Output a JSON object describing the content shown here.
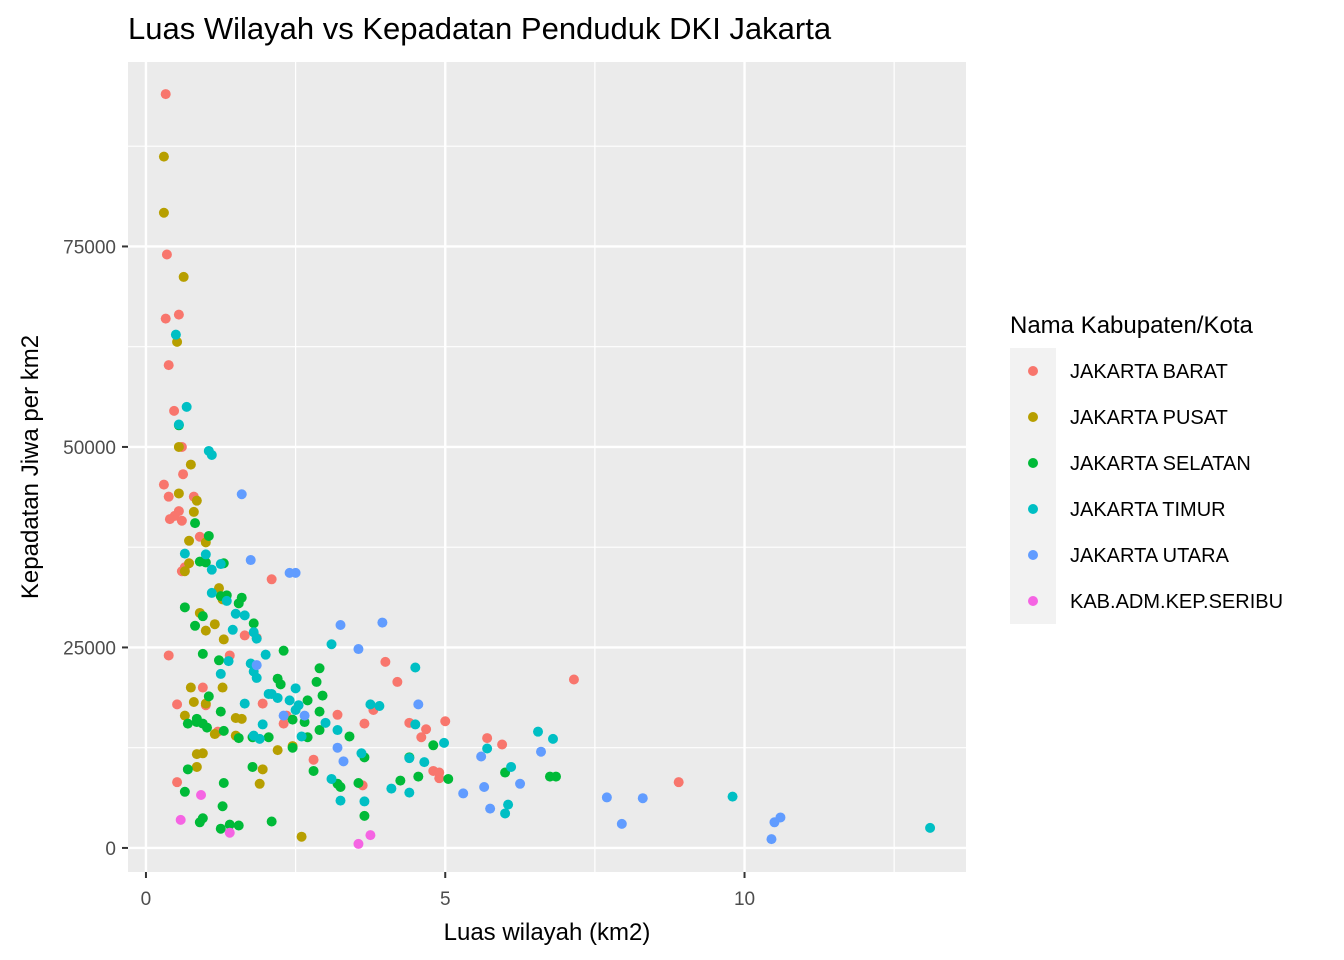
{
  "chart_data": {
    "type": "scatter",
    "title": "Luas Wilayah vs Kepadatan Penduduk DKI Jakarta",
    "xlabel": "Luas wilayah (km2)",
    "ylabel": "Kepadatan Jiwa per km2",
    "xlim": [
      -0.3,
      13.7
    ],
    "ylim": [
      -3000,
      98000
    ],
    "x_ticks": [
      0,
      5,
      10
    ],
    "y_ticks": [
      0,
      25000,
      50000,
      75000
    ],
    "grid": true,
    "legend": {
      "title": "Nama Kabupaten/Kota",
      "position": "right"
    },
    "series": [
      {
        "name": "JAKARTA BARAT",
        "color": "#F8766D",
        "points": [
          [
            0.33,
            94000
          ],
          [
            0.35,
            74000
          ],
          [
            0.33,
            66000
          ],
          [
            0.55,
            66500
          ],
          [
            0.38,
            60200
          ],
          [
            0.47,
            54500
          ],
          [
            0.6,
            50000
          ],
          [
            0.3,
            45300
          ],
          [
            0.38,
            43800
          ],
          [
            0.55,
            42000
          ],
          [
            0.48,
            41400
          ],
          [
            0.62,
            46600
          ],
          [
            0.6,
            40800
          ],
          [
            0.4,
            41000
          ],
          [
            0.8,
            43800
          ],
          [
            0.9,
            38800
          ],
          [
            0.65,
            35000
          ],
          [
            0.6,
            34500
          ],
          [
            0.38,
            24000
          ],
          [
            0.52,
            17900
          ],
          [
            0.52,
            8200
          ],
          [
            0.95,
            20000
          ],
          [
            1.0,
            17800
          ],
          [
            1.2,
            14500
          ],
          [
            1.4,
            24000
          ],
          [
            1.65,
            26500
          ],
          [
            1.85,
            26200
          ],
          [
            1.95,
            18000
          ],
          [
            2.1,
            33500
          ],
          [
            2.3,
            15500
          ],
          [
            2.35,
            16500
          ],
          [
            2.8,
            11000
          ],
          [
            3.2,
            16600
          ],
          [
            3.65,
            15500
          ],
          [
            3.8,
            17200
          ],
          [
            3.62,
            7800
          ],
          [
            4.0,
            23200
          ],
          [
            4.2,
            20700
          ],
          [
            4.4,
            15600
          ],
          [
            4.6,
            13800
          ],
          [
            4.68,
            14800
          ],
          [
            4.8,
            9600
          ],
          [
            4.9,
            8700
          ],
          [
            4.9,
            9400
          ],
          [
            5.0,
            15800
          ],
          [
            5.7,
            13700
          ],
          [
            5.95,
            12900
          ],
          [
            7.15,
            21000
          ],
          [
            8.9,
            8200
          ]
        ]
      },
      {
        "name": "JAKARTA PUSAT",
        "color": "#B79F00",
        "points": [
          [
            0.3,
            86200
          ],
          [
            0.3,
            79200
          ],
          [
            0.63,
            71200
          ],
          [
            0.52,
            63100
          ],
          [
            0.55,
            50000
          ],
          [
            0.55,
            44200
          ],
          [
            0.75,
            47800
          ],
          [
            0.85,
            43300
          ],
          [
            0.8,
            41900
          ],
          [
            0.72,
            38300
          ],
          [
            1.0,
            38100
          ],
          [
            0.72,
            35500
          ],
          [
            0.65,
            34500
          ],
          [
            1.22,
            32400
          ],
          [
            1.28,
            31000
          ],
          [
            1.0,
            27100
          ],
          [
            1.15,
            27900
          ],
          [
            1.3,
            26000
          ],
          [
            0.9,
            29300
          ],
          [
            0.75,
            20000
          ],
          [
            0.8,
            18200
          ],
          [
            0.65,
            16500
          ],
          [
            1.0,
            18000
          ],
          [
            1.28,
            20000
          ],
          [
            1.15,
            14200
          ],
          [
            0.85,
            11700
          ],
          [
            0.95,
            11800
          ],
          [
            0.85,
            10100
          ],
          [
            1.5,
            16200
          ],
          [
            1.6,
            16100
          ],
          [
            1.5,
            14000
          ],
          [
            2.2,
            12200
          ],
          [
            1.9,
            8000
          ],
          [
            1.95,
            9800
          ],
          [
            2.6,
            1400
          ],
          [
            2.45,
            12700
          ]
        ]
      },
      {
        "name": "JAKARTA SELATAN",
        "color": "#00BA38",
        "points": [
          [
            0.55,
            52700
          ],
          [
            0.82,
            40500
          ],
          [
            1.05,
            38900
          ],
          [
            0.9,
            35700
          ],
          [
            1.0,
            35600
          ],
          [
            0.65,
            30000
          ],
          [
            0.95,
            28900
          ],
          [
            0.82,
            27700
          ],
          [
            1.3,
            35500
          ],
          [
            1.35,
            31500
          ],
          [
            1.55,
            30500
          ],
          [
            1.6,
            31200
          ],
          [
            1.8,
            28000
          ],
          [
            1.25,
            31400
          ],
          [
            0.95,
            24200
          ],
          [
            1.22,
            23400
          ],
          [
            1.25,
            17000
          ],
          [
            1.05,
            18900
          ],
          [
            0.85,
            16100
          ],
          [
            0.95,
            15500
          ],
          [
            1.02,
            15000
          ],
          [
            0.85,
            15700
          ],
          [
            0.7,
            15500
          ],
          [
            0.7,
            9800
          ],
          [
            0.65,
            7000
          ],
          [
            0.9,
            3200
          ],
          [
            0.95,
            3700
          ],
          [
            1.3,
            8100
          ],
          [
            1.28,
            5200
          ],
          [
            1.25,
            2400
          ],
          [
            1.4,
            2900
          ],
          [
            1.55,
            2800
          ],
          [
            1.3,
            14600
          ],
          [
            1.55,
            13700
          ],
          [
            1.78,
            13800
          ],
          [
            2.2,
            21100
          ],
          [
            2.25,
            20400
          ],
          [
            2.3,
            24600
          ],
          [
            2.05,
            13800
          ],
          [
            2.45,
            12500
          ],
          [
            2.45,
            16000
          ],
          [
            2.65,
            15700
          ],
          [
            2.9,
            22400
          ],
          [
            2.95,
            19000
          ],
          [
            2.7,
            18400
          ],
          [
            2.9,
            17000
          ],
          [
            2.85,
            20700
          ],
          [
            2.8,
            9600
          ],
          [
            2.9,
            14700
          ],
          [
            2.7,
            13800
          ],
          [
            3.4,
            13900
          ],
          [
            3.25,
            7600
          ],
          [
            3.65,
            11300
          ],
          [
            3.55,
            8100
          ],
          [
            3.65,
            4000
          ],
          [
            3.2,
            8000
          ],
          [
            4.25,
            8400
          ],
          [
            4.55,
            8900
          ],
          [
            4.4,
            11300
          ],
          [
            4.8,
            12800
          ],
          [
            5.05,
            8600
          ],
          [
            6.0,
            9400
          ],
          [
            6.75,
            8900
          ],
          [
            6.85,
            8900
          ],
          [
            2.1,
            3300
          ],
          [
            1.78,
            10100
          ]
        ]
      },
      {
        "name": "JAKARTA TIMUR",
        "color": "#00BFC4",
        "points": [
          [
            0.5,
            64000
          ],
          [
            0.68,
            55000
          ],
          [
            0.55,
            52800
          ],
          [
            1.05,
            49500
          ],
          [
            1.1,
            49000
          ],
          [
            0.65,
            36700
          ],
          [
            1.0,
            36600
          ],
          [
            1.1,
            34700
          ],
          [
            1.25,
            35400
          ],
          [
            1.1,
            31800
          ],
          [
            1.35,
            30800
          ],
          [
            1.45,
            27200
          ],
          [
            1.5,
            29200
          ],
          [
            1.65,
            29000
          ],
          [
            1.85,
            26100
          ],
          [
            1.8,
            26900
          ],
          [
            1.75,
            23000
          ],
          [
            1.8,
            22000
          ],
          [
            2.0,
            24100
          ],
          [
            1.25,
            21700
          ],
          [
            1.38,
            23300
          ],
          [
            2.1,
            19200
          ],
          [
            2.2,
            18700
          ],
          [
            2.05,
            19200
          ],
          [
            2.4,
            18400
          ],
          [
            2.5,
            19900
          ],
          [
            2.5,
            17200
          ],
          [
            2.55,
            17800
          ],
          [
            2.6,
            13900
          ],
          [
            1.65,
            18000
          ],
          [
            1.85,
            21200
          ],
          [
            1.9,
            13600
          ],
          [
            1.95,
            15400
          ],
          [
            1.8,
            14000
          ],
          [
            3.1,
            25400
          ],
          [
            3.0,
            15600
          ],
          [
            3.2,
            14700
          ],
          [
            3.1,
            8600
          ],
          [
            3.25,
            5900
          ],
          [
            3.6,
            11800
          ],
          [
            3.65,
            5800
          ],
          [
            3.75,
            17900
          ],
          [
            3.9,
            17700
          ],
          [
            4.1,
            7400
          ],
          [
            4.4,
            11200
          ],
          [
            4.5,
            22500
          ],
          [
            4.5,
            15400
          ],
          [
            4.4,
            6900
          ],
          [
            4.65,
            10700
          ],
          [
            4.98,
            13100
          ],
          [
            5.7,
            12400
          ],
          [
            6.05,
            5400
          ],
          [
            6.1,
            10100
          ],
          [
            6.55,
            14500
          ],
          [
            6.8,
            13600
          ],
          [
            6.0,
            4300
          ],
          [
            9.8,
            6400
          ],
          [
            13.1,
            2500
          ]
        ]
      },
      {
        "name": "JAKARTA UTARA",
        "color": "#619CFF",
        "points": [
          [
            1.6,
            44100
          ],
          [
            1.75,
            35900
          ],
          [
            2.4,
            34300
          ],
          [
            2.5,
            34300
          ],
          [
            3.25,
            27800
          ],
          [
            3.95,
            28100
          ],
          [
            3.55,
            24800
          ],
          [
            1.85,
            22800
          ],
          [
            2.3,
            16500
          ],
          [
            2.65,
            16500
          ],
          [
            3.2,
            12500
          ],
          [
            3.3,
            10800
          ],
          [
            4.55,
            17900
          ],
          [
            5.3,
            6800
          ],
          [
            5.6,
            11400
          ],
          [
            5.65,
            7600
          ],
          [
            5.75,
            4900
          ],
          [
            6.25,
            8000
          ],
          [
            6.6,
            12000
          ],
          [
            7.7,
            6300
          ],
          [
            7.95,
            3000
          ],
          [
            8.3,
            6200
          ],
          [
            10.45,
            1100
          ],
          [
            10.5,
            3200
          ],
          [
            10.6,
            3800
          ]
        ]
      },
      {
        "name": "KAB.ADM.KEP.SERIBU",
        "color": "#F564E3",
        "points": [
          [
            0.58,
            3500
          ],
          [
            0.92,
            6600
          ],
          [
            1.4,
            1900
          ],
          [
            3.55,
            500
          ],
          [
            3.75,
            1600
          ]
        ]
      }
    ]
  }
}
